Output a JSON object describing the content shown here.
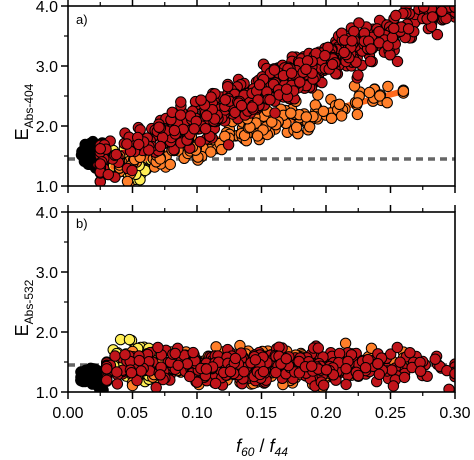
{
  "chart_data": {
    "type": "scatter",
    "x_axis": {
      "min": 0.0,
      "max": 0.3,
      "ticks": [
        0.0,
        0.05,
        0.1,
        0.15,
        0.2,
        0.25,
        0.3
      ],
      "tick_labels": [
        "0.00",
        "0.05",
        "0.10",
        "0.15",
        "0.20",
        "0.25",
        "0.30"
      ],
      "label_f1": "f",
      "label_s1": "60",
      "label_mid": " / ",
      "label_f2": "f",
      "label_s2": "44"
    },
    "panels": [
      {
        "id": "a",
        "panel_label": "a)",
        "ylabel_main": "E",
        "ylabel_sub": "Abs-404",
        "ylim": [
          1.0,
          4.0
        ],
        "yticks": [
          1.0,
          2.0,
          3.0,
          4.0
        ],
        "ytick_labels": [
          "1.0",
          "2.0",
          "3.0",
          "4.0"
        ],
        "reference_line_y": 1.45,
        "fit_lines": [
          {
            "color": "#b50d12",
            "x": [
              0.022,
              0.3
            ],
            "y": [
              1.35,
              4.0
            ]
          },
          {
            "color": "#ff6a1e",
            "x": [
              0.035,
              0.26
            ],
            "y": [
              1.32,
              2.58
            ]
          }
        ],
        "groups": [
          {
            "color": "#000000",
            "cx": 0.02,
            "sx": 0.005,
            "slope": 0.0,
            "intercept": 1.52,
            "sy": 0.13,
            "n": 55,
            "xmin": 0.01,
            "xmax": 0.03
          },
          {
            "color": "#ffee55",
            "cx": 0.05,
            "sx": 0.008,
            "slope": 0.0,
            "intercept": 1.4,
            "sy": 0.17,
            "n": 50,
            "xmin": 0.035,
            "xmax": 0.078
          },
          {
            "color": "#ff7f2a",
            "cx": 0.14,
            "sx": 0.06,
            "slope": 5.6,
            "intercept": 1.12,
            "sy": 0.13,
            "n": 200,
            "xmin": 0.04,
            "xmax": 0.26
          },
          {
            "color": "#c0141a",
            "cx": 0.16,
            "sx": 0.07,
            "slope": 9.5,
            "intercept": 1.16,
            "sy": 0.17,
            "n": 650,
            "xmin": 0.025,
            "xmax": 0.3
          }
        ]
      },
      {
        "id": "b",
        "panel_label": "b)",
        "ylabel_main": "E",
        "ylabel_sub": "Abs-532",
        "ylim": [
          1.0,
          4.0
        ],
        "yticks": [
          1.0,
          2.0,
          3.0,
          4.0
        ],
        "ytick_labels": [
          "1.0",
          "2.0",
          "3.0",
          "4.0"
        ],
        "reference_line_y": 1.45,
        "fit_lines": [],
        "groups": [
          {
            "color": "#000000",
            "cx": 0.02,
            "sx": 0.005,
            "slope": 0.0,
            "intercept": 1.22,
            "sy": 0.1,
            "n": 50,
            "xmin": 0.01,
            "xmax": 0.03
          },
          {
            "color": "#ffee55",
            "cx": 0.055,
            "sx": 0.012,
            "slope": 0.0,
            "intercept": 1.5,
            "sy": 0.18,
            "n": 55,
            "xmin": 0.035,
            "xmax": 0.085
          },
          {
            "color": "#ff7f2a",
            "cx": 0.15,
            "sx": 0.06,
            "slope": 0.0,
            "intercept": 1.45,
            "sy": 0.14,
            "n": 250,
            "xmin": 0.05,
            "xmax": 0.26
          },
          {
            "color": "#c0141a",
            "cx": 0.15,
            "sx": 0.07,
            "slope": 0.0,
            "intercept": 1.42,
            "sy": 0.13,
            "n": 450,
            "xmin": 0.03,
            "xmax": 0.3
          }
        ]
      }
    ],
    "grid": false,
    "legend": "none",
    "reference_line_color": "#666666"
  }
}
